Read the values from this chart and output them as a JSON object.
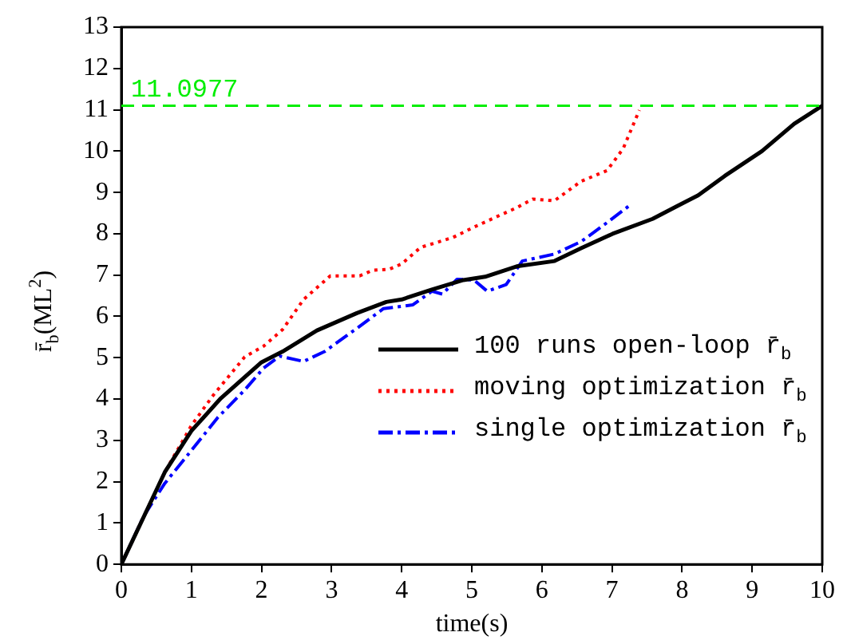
{
  "chart_data": {
    "type": "line",
    "xlabel": "time(s)",
    "ylabel": "r̄$_{b}$(ML$^{2}$)",
    "xlim": [
      0,
      10
    ],
    "ylim": [
      0,
      13
    ],
    "xticks": [
      0,
      1,
      2,
      3,
      4,
      5,
      6,
      7,
      8,
      9,
      10
    ],
    "yticks": [
      0,
      1,
      2,
      3,
      4,
      5,
      6,
      7,
      8,
      9,
      10,
      11,
      12,
      13
    ],
    "legend": "bottom right",
    "marker": "none",
    "ref_lines": [
      {
        "axis": "y",
        "value": 11.0977,
        "label": "11.0977",
        "color": "#00ee00",
        "line_style": "dashed"
      }
    ],
    "series": [
      {
        "name": "100 runs open-loop r̄$_{b}$",
        "color": "#000000",
        "line_style": "solid",
        "x": [
          0,
          0.62,
          1.0,
          1.42,
          2.0,
          2.3,
          2.79,
          3.36,
          3.78,
          4.0,
          4.43,
          4.88,
          5.19,
          5.64,
          6.18,
          6.56,
          7.01,
          7.58,
          7.93,
          8.23,
          8.61,
          9.14,
          9.6,
          10
        ],
        "values": [
          0,
          2.23,
          3.23,
          4.02,
          4.89,
          5.15,
          5.66,
          6.08,
          6.35,
          6.41,
          6.65,
          6.88,
          6.96,
          7.21,
          7.34,
          7.65,
          8.0,
          8.36,
          8.67,
          8.93,
          9.4,
          10.0,
          10.66,
          11.0977
        ]
      },
      {
        "name": "moving optimization r̄$_{b}$",
        "color": "#ff0000",
        "line_style": "dotted",
        "x": [
          0,
          0.62,
          1.0,
          1.31,
          1.76,
          2.03,
          2.3,
          2.6,
          2.98,
          3.4,
          3.59,
          3.82,
          4.0,
          4.27,
          4.73,
          5.03,
          5.34,
          5.64,
          5.87,
          6.18,
          6.56,
          6.93,
          7.16,
          7.39
        ],
        "values": [
          0,
          2.23,
          3.36,
          4.09,
          5.02,
          5.28,
          5.68,
          6.41,
          6.98,
          6.98,
          7.12,
          7.14,
          7.27,
          7.67,
          7.91,
          8.16,
          8.4,
          8.63,
          8.84,
          8.8,
          9.27,
          9.53,
          10.06,
          10.99
        ]
      },
      {
        "name": "single optimization r̄$_{b}$",
        "color": "#0000ff",
        "line_style": "dashdot",
        "x": [
          0,
          0.32,
          0.62,
          1.0,
          1.38,
          1.76,
          2.03,
          2.26,
          2.6,
          2.9,
          3.36,
          3.74,
          4.16,
          4.43,
          4.58,
          4.79,
          5.03,
          5.22,
          5.49,
          5.72,
          6.18,
          6.56,
          6.93,
          7.24
        ],
        "values": [
          0,
          1.17,
          1.96,
          2.76,
          3.56,
          4.22,
          4.75,
          5.04,
          4.91,
          5.15,
          5.71,
          6.19,
          6.28,
          6.61,
          6.54,
          6.9,
          6.88,
          6.61,
          6.77,
          7.34,
          7.51,
          7.81,
          8.27,
          8.67
        ]
      }
    ]
  }
}
